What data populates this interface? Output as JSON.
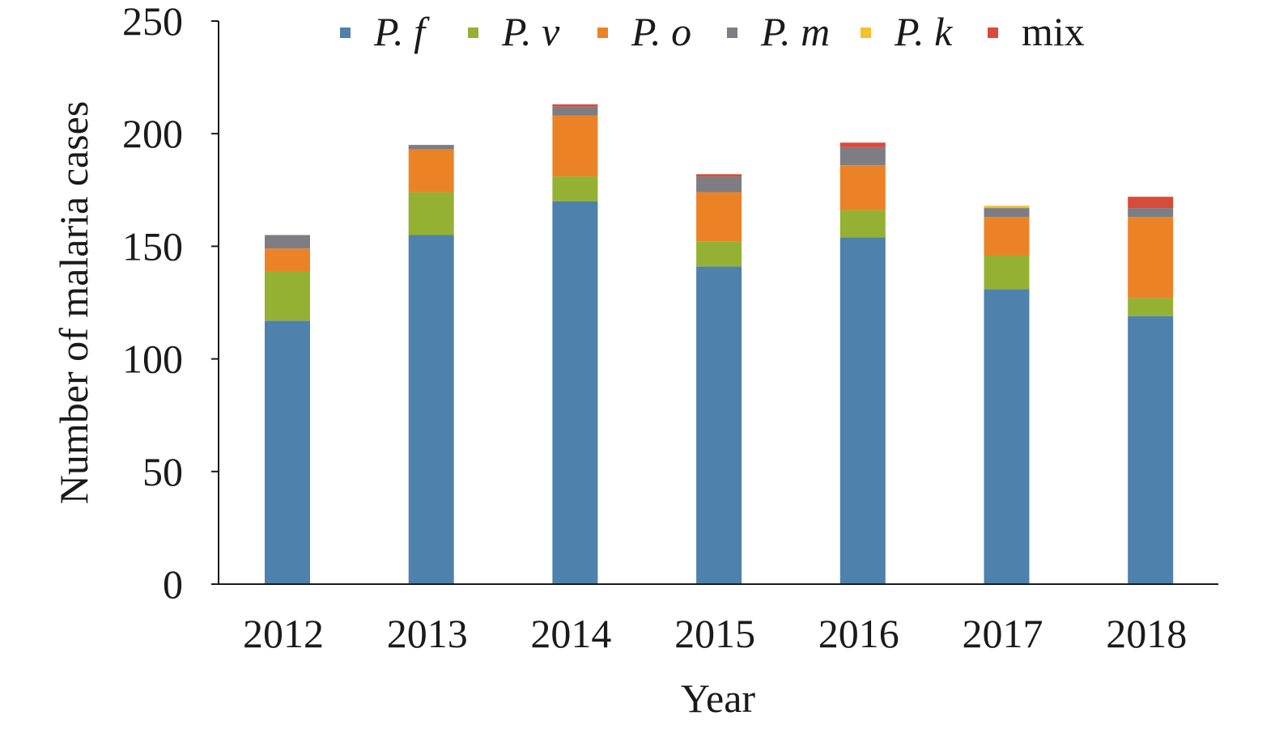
{
  "chart_data": {
    "type": "bar",
    "stacked": true,
    "title": "",
    "xlabel": "Year",
    "ylabel": "Number of malaria cases",
    "categories": [
      "2012",
      "2013",
      "2014",
      "2015",
      "2016",
      "2017",
      "2018"
    ],
    "ylim": [
      0,
      250
    ],
    "yticks": [
      "0",
      "50",
      "100",
      "150",
      "200",
      "250"
    ],
    "grid": false,
    "legend_position": "top",
    "series": [
      {
        "name": "P. f",
        "color": "#4e81ac",
        "values": [
          117,
          155,
          170,
          141,
          154,
          131,
          119
        ]
      },
      {
        "name": "P. v",
        "color": "#94b133",
        "values": [
          22,
          19,
          11,
          11,
          12,
          15,
          8
        ]
      },
      {
        "name": "P. o",
        "color": "#ec8226",
        "values": [
          10,
          19,
          27,
          22,
          20,
          17,
          36
        ]
      },
      {
        "name": "P. m",
        "color": "#7d7d83",
        "values": [
          6,
          2,
          4,
          7,
          8,
          4,
          4
        ]
      },
      {
        "name": "P. k",
        "color": "#f4c02b",
        "values": [
          0,
          0,
          0,
          0,
          0,
          1,
          0
        ]
      },
      {
        "name": "mix",
        "color": "#d94a3a",
        "values": [
          0,
          0,
          1,
          1,
          2,
          0,
          5
        ]
      }
    ]
  }
}
